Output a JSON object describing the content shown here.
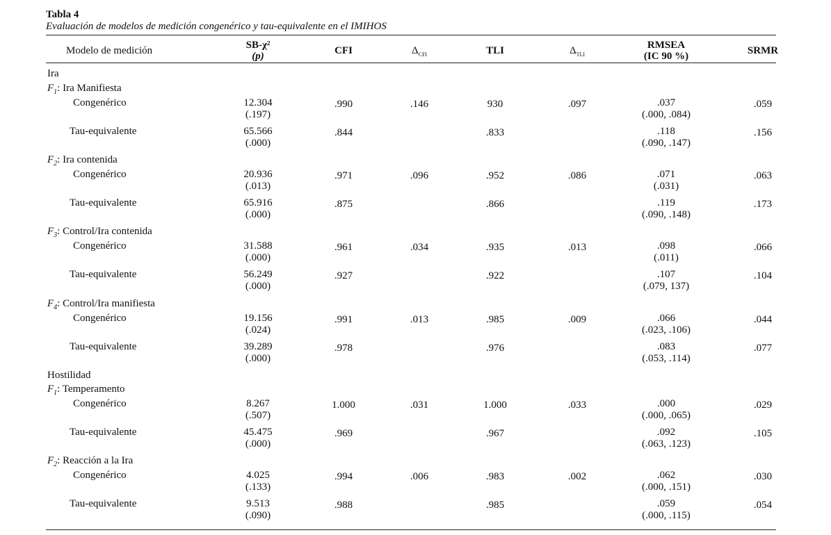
{
  "title": "Tabla 4",
  "caption": "Evaluación de modelos de medición congenérico y tau-equivalente en el IMIHOS",
  "headers": {
    "model": "Modelo de medición",
    "sb_line1": "SB-χ²",
    "sb_line2": "(p)",
    "cfi": "CFI",
    "delta_cfi": "Δ",
    "delta_cfi_sub": "CFI",
    "tli": "TLI",
    "delta_tli": "Δ",
    "delta_tli_sub": "TLI",
    "rmsea_line1": "RMSEA",
    "rmsea_line2": "(IC 90 %)",
    "srmr": "SRMR"
  },
  "groups": [
    {
      "name": "Ira",
      "factors": [
        {
          "f": "F",
          "sub": "1",
          "label": ": Ira Manifiesta",
          "rows": [
            {
              "model": "Congenérico",
              "sb": "12.304",
              "p": "(.197)",
              "cfi": ".990",
              "dcfi": ".146",
              "tli": "930",
              "dtli": ".097",
              "rmsea": ".037",
              "ci": "(.000, .084)",
              "srmr": ".059"
            },
            {
              "model": "Tau-equivalente",
              "sb": "65.566",
              "p": "(.000)",
              "cfi": ".844",
              "dcfi": "",
              "tli": ".833",
              "dtli": "",
              "rmsea": ".118",
              "ci": "(.090, .147)",
              "srmr": ".156"
            }
          ]
        },
        {
          "f": "F",
          "sub": "2",
          "label": ": Ira contenida",
          "rows": [
            {
              "model": "Congenérico",
              "sb": "20.936",
              "p": "(.013)",
              "cfi": ".971",
              "dcfi": ".096",
              "tli": ".952",
              "dtli": ".086",
              "rmsea": ".071",
              "ci": "(.031)",
              "srmr": ".063"
            },
            {
              "model": "Tau-equivalente",
              "sb": "65.916",
              "p": "(.000)",
              "cfi": ".875",
              "dcfi": "",
              "tli": ".866",
              "dtli": "",
              "rmsea": ".119",
              "ci": "(.090, .148)",
              "srmr": ".173"
            }
          ]
        },
        {
          "f": "F",
          "sub": "3",
          "label": ": Control/Ira contenida",
          "rows": [
            {
              "model": "Congenérico",
              "sb": "31.588",
              "p": "(.000)",
              "cfi": ".961",
              "dcfi": ".034",
              "tli": ".935",
              "dtli": ".013",
              "rmsea": ".098",
              "ci": "(.011)",
              "srmr": ".066"
            },
            {
              "model": "Tau-equivalente",
              "sb": "56.249",
              "p": "(.000)",
              "cfi": ".927",
              "dcfi": "",
              "tli": ".922",
              "dtli": "",
              "rmsea": ".107",
              "ci": "(.079, 137)",
              "srmr": ".104"
            }
          ]
        },
        {
          "f": "F",
          "sub": "4",
          "label": ": Control/Ira manifiesta",
          "rows": [
            {
              "model": "Congenérico",
              "sb": "19.156",
              "p": "(.024)",
              "cfi": ".991",
              "dcfi": ".013",
              "tli": ".985",
              "dtli": ".009",
              "rmsea": ".066",
              "ci": "(.023, .106)",
              "srmr": ".044"
            },
            {
              "model": "Tau-equivalente",
              "sb": "39.289",
              "p": "(.000)",
              "cfi": ".978",
              "dcfi": "",
              "tli": ".976",
              "dtli": "",
              "rmsea": ".083",
              "ci": "(.053, .114)",
              "srmr": ".077"
            }
          ]
        }
      ]
    },
    {
      "name": "Hostilidad",
      "factors": [
        {
          "f": "F",
          "sub": "1",
          "label": ": Temperamento",
          "rows": [
            {
              "model": "Congenérico",
              "sb": "8.267",
              "p": "(.507)",
              "cfi": "1.000",
              "dcfi": ".031",
              "tli": "1.000",
              "dtli": ".033",
              "rmsea": ".000",
              "ci": "(.000, .065)",
              "srmr": ".029"
            },
            {
              "model": "Tau-equivalente",
              "sb": "45.475",
              "p": "(.000)",
              "cfi": ".969",
              "dcfi": "",
              "tli": ".967",
              "dtli": "",
              "rmsea": ".092",
              "ci": "(.063, .123)",
              "srmr": ".105"
            }
          ]
        },
        {
          "f": "F",
          "sub": "2",
          "label": ": Reacción a la Ira",
          "rows": [
            {
              "model": "Congenérico",
              "sb": "4.025",
              "p": "(.133)",
              "cfi": ".994",
              "dcfi": ".006",
              "tli": ".983",
              "dtli": ".002",
              "rmsea": ".062",
              "ci": "(.000, .151)",
              "srmr": ".030"
            },
            {
              "model": "Tau-equivalente",
              "sb": "9.513",
              "p": "(.090)",
              "cfi": ".988",
              "dcfi": "",
              "tli": ".985",
              "dtli": "",
              "rmsea": ".059",
              "ci": "(.000, .115)",
              "srmr": ".054"
            }
          ]
        }
      ]
    }
  ]
}
